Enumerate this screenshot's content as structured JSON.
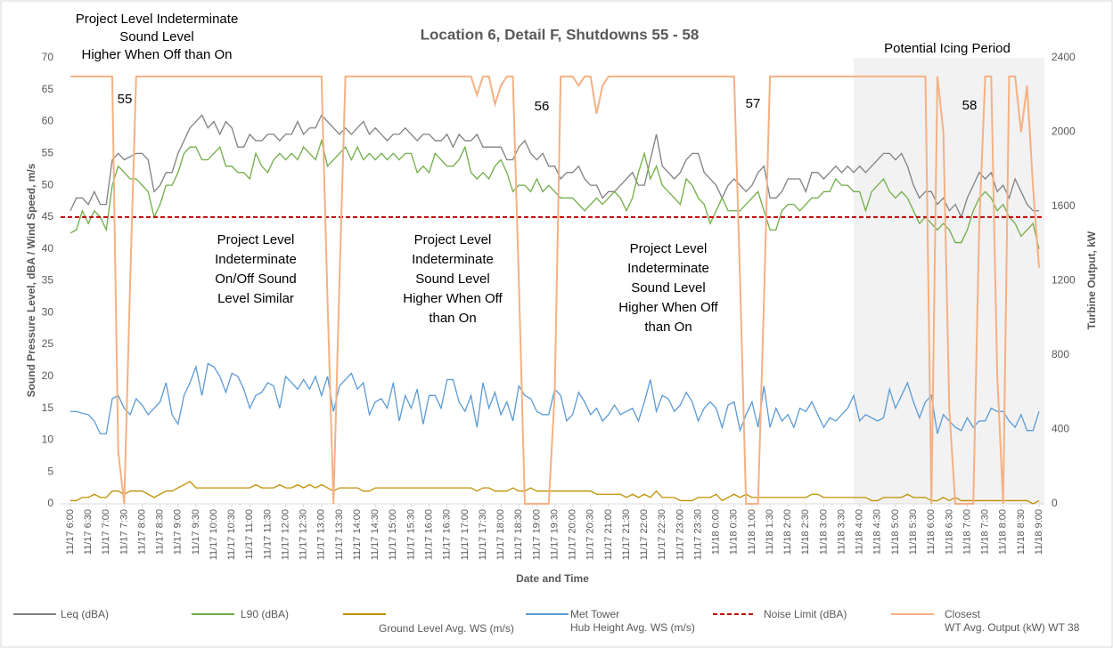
{
  "chart_data": {
    "type": "line",
    "title": "Location 6, Detail F, Shutdowns 55 - 58",
    "x_label": "Date and Time",
    "y_label": "Sound Pressure Level, dBA / Wind Speed, m/s",
    "y2_label": "Turbine Output, kW",
    "ylim": [
      0,
      70
    ],
    "yticks": [
      0,
      5,
      10,
      15,
      20,
      25,
      30,
      35,
      40,
      45,
      50,
      55,
      60,
      65,
      70
    ],
    "y2lim": [
      0,
      2400
    ],
    "y2ticks": [
      0,
      400,
      800,
      1200,
      1600,
      2000,
      2400
    ],
    "grid": false,
    "categories": [
      "11/17 6:00",
      null,
      null,
      "11/17 6:30",
      null,
      null,
      "11/17 7:00",
      null,
      null,
      "11/17 7:30",
      null,
      null,
      "11/17 8:00",
      null,
      null,
      "11/17 8:30",
      null,
      null,
      "11/17 9:00",
      null,
      null,
      "11/17 9:30",
      null,
      null,
      "11/17 10:00",
      null,
      null,
      "11/17 10:30",
      null,
      null,
      "11/17 11:00",
      null,
      null,
      "11/17 11:30",
      null,
      null,
      "11/17 12:00",
      null,
      null,
      "11/17 12:30",
      null,
      null,
      "11/17 13:00",
      null,
      null,
      "11/17 13:30",
      null,
      null,
      "11/17 14:00",
      null,
      null,
      "11/17 14:30",
      null,
      null,
      "11/17 15:00",
      null,
      null,
      "11/17 15:30",
      null,
      null,
      "11/17 16:00",
      null,
      null,
      "11/17 16:30",
      null,
      null,
      "11/17 17:00",
      null,
      null,
      "11/17 17:30",
      null,
      null,
      "11/17 18:00",
      null,
      null,
      "11/17 18:30",
      null,
      null,
      "11/17 19:00",
      null,
      null,
      "11/17 19:30",
      null,
      null,
      "11/17 20:00",
      null,
      null,
      "11/17 20:30",
      null,
      null,
      "11/17 21:00",
      null,
      null,
      "11/17 21:30",
      null,
      null,
      "11/17 22:00",
      null,
      null,
      "11/17 22:30",
      null,
      null,
      "11/17 23:00",
      null,
      null,
      "11/17 23:30",
      null,
      null,
      "11/18 0:00",
      null,
      null,
      "11/18 0:30",
      null,
      null,
      "11/18 1:00",
      null,
      null,
      "11/18 1:30",
      null,
      null,
      "11/18 2:00",
      null,
      null,
      "11/18 2:30",
      null,
      null,
      "11/18 3:00",
      null,
      null,
      "11/18 3:30",
      null,
      null,
      "11/18 4:00",
      null,
      null,
      "11/18 4:30",
      null,
      null,
      "11/18 5:00",
      null,
      null,
      "11/18 5:30",
      null,
      null,
      "11/18 6:00",
      null,
      null,
      "11/18 6:30",
      null,
      null,
      "11/18 7:00",
      null,
      null,
      "11/18 7:30",
      null,
      null,
      "11/18 8:00",
      null,
      null,
      "11/18 8:30",
      null,
      null,
      "11/18 9:00"
    ],
    "series": [
      {
        "name": "Leq (dBA)",
        "color": "#808080",
        "values": [
          46,
          48,
          48,
          47,
          49,
          47,
          47,
          54,
          55,
          54,
          54.5,
          55,
          55,
          54,
          49,
          50,
          52,
          52,
          55,
          57,
          59,
          60,
          61,
          59,
          60,
          58,
          60,
          59,
          56,
          56,
          58,
          57,
          57,
          58,
          58,
          57,
          58,
          58,
          60,
          58,
          59,
          59,
          61,
          60,
          59,
          58,
          59,
          58,
          59,
          60,
          58,
          59,
          58,
          57,
          58,
          58,
          59,
          58,
          57,
          58,
          58,
          57,
          57,
          58,
          56,
          58,
          57,
          57,
          58,
          56,
          56,
          56,
          56,
          54,
          54,
          56,
          57,
          55,
          54,
          55,
          53,
          53,
          51,
          52,
          52,
          53,
          51,
          50,
          50,
          48,
          49,
          49,
          50,
          51,
          52,
          50,
          50,
          54,
          58,
          53,
          52,
          51,
          52,
          54,
          55,
          55,
          52,
          51,
          50,
          48,
          50,
          51,
          50,
          49,
          50,
          52,
          53,
          48,
          48,
          49,
          51,
          51,
          51,
          49,
          52,
          52,
          51,
          52,
          53,
          52,
          53,
          52,
          53,
          52,
          53,
          54,
          55,
          55,
          54,
          55,
          53,
          50,
          48,
          49,
          49,
          47,
          48,
          46,
          47,
          45,
          48,
          50,
          52,
          51,
          52,
          49,
          50,
          48,
          51,
          49,
          47,
          46,
          46
        ]
      },
      {
        "name": "L90 (dBA)",
        "color": "#70ad47",
        "values": [
          42.5,
          43,
          46,
          44,
          46,
          45,
          43,
          50,
          53,
          52,
          51,
          51,
          50,
          49,
          45,
          47,
          50,
          50,
          52,
          55,
          56,
          56,
          54,
          54,
          55,
          56,
          53,
          53,
          52,
          52,
          51,
          55,
          53,
          52,
          54,
          55,
          54,
          55,
          54,
          56,
          55,
          54,
          57,
          53,
          54,
          55,
          56,
          54,
          56,
          54,
          55,
          54,
          55,
          54,
          55,
          54,
          55,
          55,
          52,
          53,
          52,
          55,
          54,
          53,
          53,
          54,
          56,
          52,
          51,
          52,
          51,
          53,
          54,
          52,
          49,
          50,
          50,
          49,
          51,
          49,
          50,
          49,
          48,
          48,
          48,
          47,
          46,
          47,
          48,
          47,
          48,
          49,
          48,
          46,
          48,
          52,
          55,
          51,
          53,
          50,
          49,
          48,
          47,
          51,
          50,
          48,
          47,
          44,
          46,
          48,
          46,
          46,
          46,
          47,
          48,
          49,
          46,
          43,
          43,
          46,
          47,
          47,
          46,
          47,
          48,
          48,
          49,
          49,
          51,
          50,
          50,
          49,
          49,
          46,
          49,
          50,
          51,
          49,
          48,
          49,
          48,
          46,
          44,
          45,
          44,
          43,
          44,
          43,
          41,
          41,
          43,
          46,
          48,
          49,
          48,
          46,
          47,
          45,
          44,
          42,
          43,
          44,
          40
        ]
      },
      {
        "name": "Ground Level Avg. WS (m/s)",
        "color": "#bf9000",
        "values": [
          0.5,
          0.5,
          1,
          1,
          1.5,
          1,
          1,
          2,
          2,
          1.5,
          2,
          2,
          2,
          1.5,
          1,
          1.5,
          2,
          2,
          2.5,
          3,
          3.5,
          2.5,
          2.5,
          2.5,
          2.5,
          2.5,
          2.5,
          2.5,
          2.5,
          2.5,
          2.5,
          3,
          2.5,
          2.5,
          2.5,
          3,
          2.5,
          2.5,
          3,
          2.5,
          3,
          2.5,
          3,
          2.5,
          2,
          2.5,
          2.5,
          2.5,
          2.5,
          2,
          2,
          2.5,
          2.5,
          2.5,
          2.5,
          2.5,
          2.5,
          2.5,
          2.5,
          2.5,
          2.5,
          2.5,
          2.5,
          2.5,
          2.5,
          2.5,
          2.5,
          2.5,
          2,
          2.5,
          2.5,
          2,
          2,
          2,
          2.5,
          2,
          2,
          2.5,
          2,
          2,
          2,
          2,
          2,
          2,
          2,
          2,
          2,
          2,
          1.5,
          1.5,
          1.5,
          1.5,
          1.5,
          1,
          1.5,
          1,
          1.5,
          1,
          2,
          1,
          1,
          1,
          0.5,
          0.5,
          0.5,
          1,
          1,
          1,
          1.5,
          0.5,
          1,
          1.5,
          1,
          1.5,
          1,
          1,
          1,
          1,
          1,
          1,
          1,
          1,
          1,
          1,
          1.5,
          1.5,
          1,
          1,
          1,
          1,
          1,
          1,
          1,
          1,
          0.5,
          0.5,
          1,
          1,
          1,
          1,
          1.5,
          1,
          1,
          1,
          0.5,
          0.5,
          1,
          0.5,
          1,
          0.5,
          0.5,
          0.5,
          0.5,
          0.5,
          0.5,
          0.5,
          0.5,
          0.5,
          0.5,
          0.5,
          0.5,
          0,
          0.5
        ]
      },
      {
        "name": "Met Tower\nHub Height Avg. WS (m/s)",
        "color": "#5b9bd5",
        "values": [
          14.5,
          14.5,
          14.2,
          14,
          13,
          11,
          11,
          16.5,
          17,
          15,
          14,
          16.5,
          15.5,
          14,
          15,
          16,
          19,
          14,
          12.5,
          17,
          19,
          21.5,
          17,
          22,
          21.5,
          20,
          17.5,
          20.5,
          20,
          18,
          15,
          17,
          17.5,
          19,
          18.5,
          15,
          20,
          19,
          18,
          19.5,
          18,
          20,
          17,
          20,
          14.5,
          18.5,
          19.5,
          20.5,
          18,
          19,
          14,
          16,
          16.5,
          15,
          19,
          13,
          17,
          15,
          18,
          12.5,
          17,
          17,
          15,
          19.5,
          19.5,
          16,
          14.5,
          17,
          12,
          19,
          15,
          17.5,
          14,
          16,
          13,
          18.5,
          17,
          16.5,
          14.5,
          14,
          14,
          18,
          17,
          13,
          14,
          17.5,
          16,
          14,
          15,
          13,
          14,
          15.5,
          14,
          14.5,
          15,
          13,
          16,
          19.5,
          14.5,
          17,
          16.5,
          14.5,
          15.5,
          17.5,
          16,
          13,
          15,
          16,
          15,
          12,
          15.5,
          16,
          11.5,
          14,
          16,
          12,
          18.5,
          12,
          15,
          13,
          14,
          12,
          15,
          14.5,
          16,
          14,
          12,
          13.5,
          13,
          14,
          15,
          17,
          13,
          14,
          13.5,
          13,
          13.5,
          18,
          15,
          17,
          19,
          16,
          13.5,
          16,
          17,
          11,
          14,
          13,
          12,
          11.5,
          13.5,
          12,
          13,
          13,
          15,
          14.5,
          14.5,
          13,
          12,
          14,
          11.5,
          11.5,
          14.5
        ]
      },
      {
        "name": "Closest\nWT Avg. Output (kW) WT 38",
        "color": "#f4b183",
        "axis": "y2",
        "values": [
          2300,
          2300,
          2300,
          2300,
          2300,
          2300,
          2300,
          2300,
          280,
          0,
          1200,
          2300,
          2300,
          2300,
          2300,
          2300,
          2300,
          2300,
          2300,
          2300,
          2300,
          2300,
          2300,
          2300,
          2300,
          2300,
          2300,
          2300,
          2300,
          2300,
          2300,
          2300,
          2300,
          2300,
          2300,
          2300,
          2300,
          2300,
          2300,
          2300,
          2300,
          2300,
          2300,
          1100,
          0,
          1200,
          2300,
          2300,
          2300,
          2300,
          2300,
          2300,
          2300,
          2300,
          2300,
          2300,
          2300,
          2300,
          2300,
          2300,
          2300,
          2300,
          2300,
          2300,
          2300,
          2300,
          2300,
          2300,
          2200,
          2300,
          2300,
          2150,
          2250,
          2300,
          2300,
          1200,
          0,
          0,
          0,
          0,
          0,
          600,
          2300,
          2300,
          2300,
          2250,
          2300,
          2300,
          2100,
          2250,
          2300,
          2300,
          2300,
          2300,
          2300,
          2300,
          2300,
          2300,
          2300,
          2300,
          2300,
          2300,
          2300,
          2300,
          2300,
          2300,
          2300,
          2300,
          2300,
          2300,
          2300,
          2300,
          1200,
          0,
          0,
          0,
          1100,
          2300,
          2300,
          2300,
          2300,
          2300,
          2300,
          2300,
          2300,
          2300,
          2300,
          2300,
          2300,
          2300,
          2300,
          2300,
          2300,
          2300,
          2300,
          2300,
          2300,
          2300,
          2300,
          2300,
          2300,
          2300,
          2300,
          2300,
          0,
          2300,
          2000,
          500,
          0,
          0,
          0,
          0,
          1500,
          2300,
          2300,
          700,
          0,
          2300,
          2300,
          2000,
          2250,
          1700,
          1270
        ]
      }
    ],
    "reference_line": {
      "name": "Noise Limit (dBA)",
      "color": "#c00000",
      "value": 45,
      "dashed": true
    },
    "shaded_region": {
      "label": "Potential Icing Period",
      "from": 131,
      "color": "#f2f2f2"
    },
    "annotations": [
      {
        "lines": [
          "Project Level Indeterminate",
          "Sound Level",
          "Higher When Off than On"
        ]
      },
      {
        "lines": [
          "Project Level",
          "Indeterminate",
          "On/Off Sound",
          "Level Similar"
        ]
      },
      {
        "lines": [
          "Project Level",
          "Indeterminate",
          "Sound Level",
          "Higher When Off",
          "than On"
        ]
      },
      {
        "lines": [
          "Project Level",
          "Indeterminate",
          "Sound Level",
          "Higher When Off",
          "than On"
        ]
      }
    ],
    "shutdown_labels": [
      "55",
      "56",
      "57",
      "58"
    ]
  }
}
